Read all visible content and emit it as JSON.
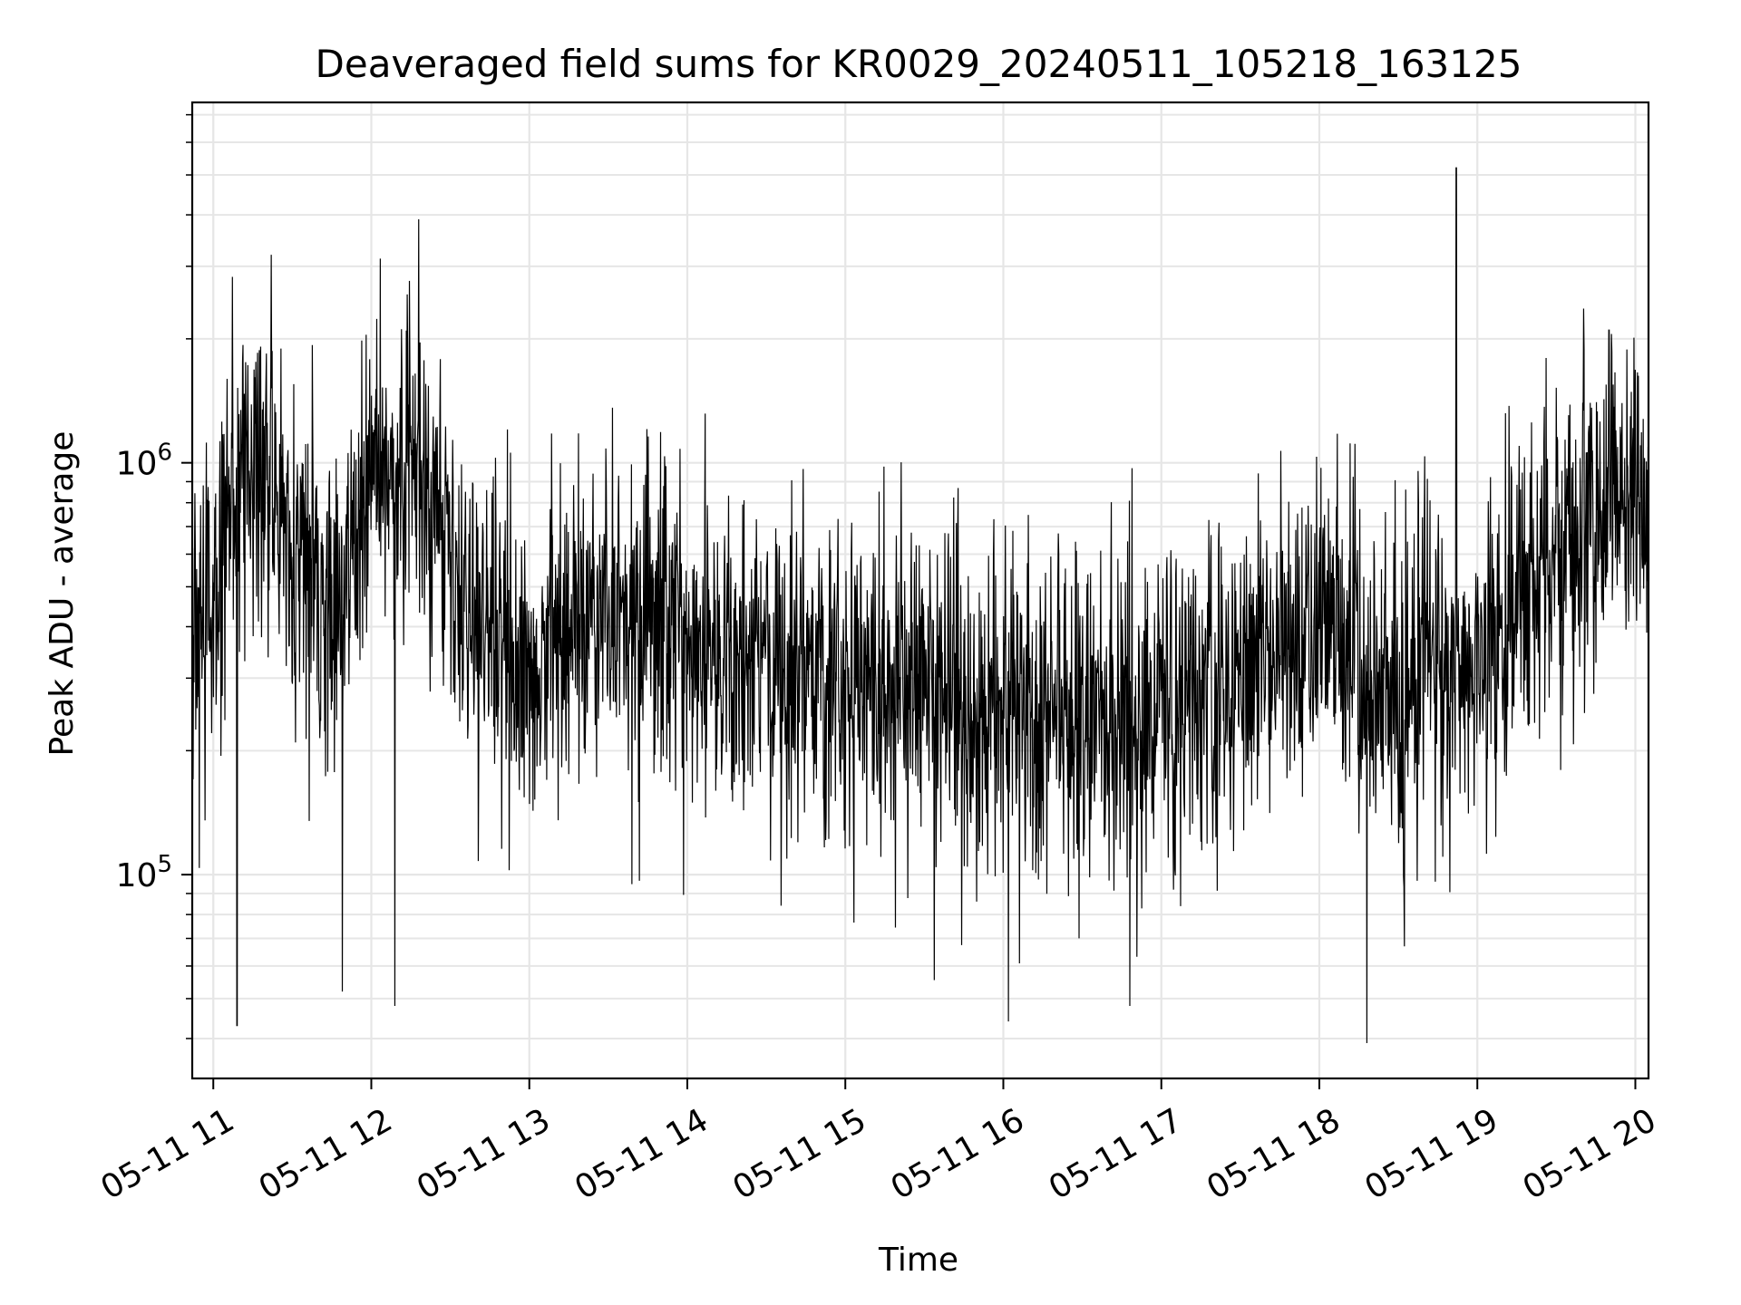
{
  "chart_data": {
    "type": "line",
    "title": "Deaveraged field sums for KR0029_20240511_105218_163125",
    "xlabel": "Time",
    "ylabel": "Peak ADU - average",
    "yscale": "log",
    "grid": true,
    "line_color": "#000000",
    "grid_color": "#e6e6e6",
    "xlim": [
      "2024-05-11 10:52",
      "2024-05-11 20:05"
    ],
    "ylim": [
      32000,
      7500000
    ],
    "x_ticks": [
      {
        "value": "2024-05-11 11:00",
        "label": "05-11 11"
      },
      {
        "value": "2024-05-11 12:00",
        "label": "05-11 12"
      },
      {
        "value": "2024-05-11 13:00",
        "label": "05-11 13"
      },
      {
        "value": "2024-05-11 14:00",
        "label": "05-11 14"
      },
      {
        "value": "2024-05-11 15:00",
        "label": "05-11 15"
      },
      {
        "value": "2024-05-11 16:00",
        "label": "05-11 16"
      },
      {
        "value": "2024-05-11 17:00",
        "label": "05-11 17"
      },
      {
        "value": "2024-05-11 18:00",
        "label": "05-11 18"
      },
      {
        "value": "2024-05-11 19:00",
        "label": "05-11 19"
      },
      {
        "value": "2024-05-11 20:00",
        "label": "05-11 20"
      }
    ],
    "y_ticks": [
      {
        "value": 100000,
        "base": "10",
        "exp": "5"
      },
      {
        "value": 1000000,
        "base": "10",
        "exp": "6"
      }
    ],
    "series": [
      {
        "x": [
          "2024-05-11 10:52",
          "2024-05-11 11:00",
          "2024-05-11 11:08",
          "2024-05-11 11:15",
          "2024-05-11 11:20",
          "2024-05-11 11:30",
          "2024-05-11 11:45",
          "2024-05-11 12:00",
          "2024-05-11 12:15",
          "2024-05-11 12:30",
          "2024-05-11 12:45",
          "2024-05-11 13:00",
          "2024-05-11 13:30",
          "2024-05-11 14:00",
          "2024-05-11 14:30",
          "2024-05-11 15:00",
          "2024-05-11 15:30",
          "2024-05-11 16:00",
          "2024-05-11 16:30",
          "2024-05-11 17:00",
          "2024-05-11 17:30",
          "2024-05-11 18:00",
          "2024-05-11 18:30",
          "2024-05-11 18:50",
          "2024-05-11 19:00",
          "2024-05-11 19:30",
          "2024-05-11 20:00",
          "2024-05-11 20:05"
        ],
        "y": [
          400000,
          450000,
          800000,
          1000000,
          900000,
          650000,
          420000,
          900000,
          1100000,
          550000,
          380000,
          330000,
          450000,
          380000,
          330000,
          300000,
          280000,
          260000,
          240000,
          250000,
          320000,
          380000,
          280000,
          330000,
          310000,
          650000,
          800000,
          750000
        ]
      }
    ],
    "spikes": [
      {
        "x": "2024-05-11 18:52",
        "y": 5200000
      },
      {
        "x": "2024-05-11 12:18",
        "y": 3900000
      },
      {
        "x": "2024-05-11 11:22",
        "y": 3200000
      },
      {
        "x": "2024-05-11 11:09",
        "y": 43000
      },
      {
        "x": "2024-05-11 12:09",
        "y": 48000
      },
      {
        "x": "2024-05-11 11:49",
        "y": 52000
      },
      {
        "x": "2024-05-11 16:02",
        "y": 44000
      },
      {
        "x": "2024-05-11 18:18",
        "y": 39000
      },
      {
        "x": "2024-05-11 16:48",
        "y": 48000
      },
      {
        "x": "2024-05-11 19:50",
        "y": 2100000
      }
    ]
  }
}
